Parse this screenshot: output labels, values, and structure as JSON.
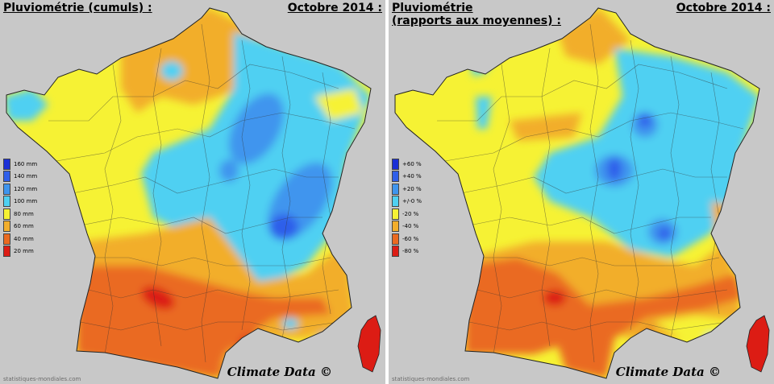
{
  "left": {
    "title": "Pluviométrie (cumuls) :",
    "date": "Octobre 2014 :",
    "legend": [
      {
        "label": "160 mm",
        "color": "#1a2fd6"
      },
      {
        "label": "140 mm",
        "color": "#2f5fea"
      },
      {
        "label": "120 mm",
        "color": "#3f95ee"
      },
      {
        "label": "100 mm",
        "color": "#4fd0f2"
      },
      {
        "label": "80 mm",
        "color": "#f6f234"
      },
      {
        "label": "60 mm",
        "color": "#f2ae2c"
      },
      {
        "label": "40 mm",
        "color": "#ea6a20"
      },
      {
        "label": "20 mm",
        "color": "#dc1c14"
      }
    ],
    "credit": "Climate Data ©",
    "watermark": "statistiques-mondiales.com"
  },
  "right": {
    "title_line1": "Pluviométrie",
    "title_line2": "(rapports aux moyennes) :",
    "date": "Octobre 2014 :",
    "legend": [
      {
        "label": "+60 %",
        "color": "#1a2fd6"
      },
      {
        "label": "+40 %",
        "color": "#2f5fea"
      },
      {
        "label": "+20 %",
        "color": "#3f95ee"
      },
      {
        "label": "+/-0 %",
        "color": "#4fd0f2"
      },
      {
        "label": "-20 %",
        "color": "#f6f234"
      },
      {
        "label": "-40 %",
        "color": "#f2ae2c"
      },
      {
        "label": "-60 %",
        "color": "#ea6a20"
      },
      {
        "label": "-80 %",
        "color": "#dc1c14"
      }
    ],
    "credit": "Climate Data ©",
    "watermark": "statistiques-mondiales.com"
  }
}
